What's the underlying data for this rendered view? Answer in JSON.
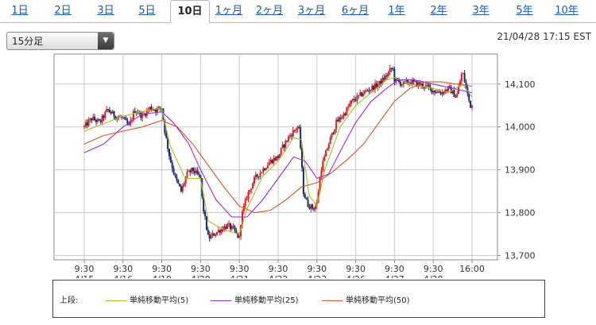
{
  "tabs": [
    {
      "label": "1日",
      "active": false
    },
    {
      "label": "2日",
      "active": false
    },
    {
      "label": "3日",
      "active": false
    },
    {
      "label": "5日",
      "active": false
    },
    {
      "label": "10日",
      "active": true
    },
    {
      "label": "1ヶ月",
      "active": false
    },
    {
      "label": "2ヶ月",
      "active": false
    },
    {
      "label": "3ヶ月",
      "active": false
    },
    {
      "label": "6ヶ月",
      "active": false
    },
    {
      "label": "1年",
      "active": false
    },
    {
      "label": "2年",
      "active": false
    },
    {
      "label": "3年",
      "active": false
    },
    {
      "label": "5年",
      "active": false
    },
    {
      "label": "10年",
      "active": false
    }
  ],
  "interval_select": {
    "value": "15分足"
  },
  "timestamp": "21/04/28 17:15 EST",
  "legend": {
    "prefix": "上段:",
    "items": [
      {
        "label": "単純移動平均(5)",
        "color": "#a8c020"
      },
      {
        "label": "単純移動平均(25)",
        "color": "#9a2fd0"
      },
      {
        "label": "単純移動平均(50)",
        "color": "#d8532a"
      }
    ]
  },
  "colors": {
    "up": "#d81e1e",
    "down": "#1a2a6b",
    "grid": "#c8c8c8",
    "axis": "#888888"
  },
  "chart_data": {
    "type": "candlestick",
    "y_ticks": [
      13700,
      13800,
      13900,
      14000,
      14100
    ],
    "ylim": [
      13690,
      14170
    ],
    "x_ticks": [
      {
        "time": "9:30",
        "date": "4/15"
      },
      {
        "time": "9:30",
        "date": "4/16"
      },
      {
        "time": "9:30",
        "date": "4/19"
      },
      {
        "time": "9:30",
        "date": "4/20"
      },
      {
        "time": "9:30",
        "date": "4/21"
      },
      {
        "time": "9:30",
        "date": "4/22"
      },
      {
        "time": "9:30",
        "date": "4/23"
      },
      {
        "time": "9:30",
        "date": "4/26"
      },
      {
        "time": "9:30",
        "date": "4/27"
      },
      {
        "time": "9:30",
        "date": "4/28"
      },
      {
        "time": "16:00",
        "date": ""
      }
    ],
    "close_path": [
      [
        0,
        14000
      ],
      [
        0.2,
        14020
      ],
      [
        0.4,
        14010
      ],
      [
        0.6,
        14040
      ],
      [
        0.8,
        14025
      ],
      [
        1.0,
        14020
      ],
      [
        1.15,
        14000
      ],
      [
        1.3,
        14040
      ],
      [
        1.5,
        14025
      ],
      [
        1.7,
        14045
      ],
      [
        1.85,
        14040
      ],
      [
        2.0,
        14045
      ],
      [
        2.08,
        13990
      ],
      [
        2.2,
        13930
      ],
      [
        2.35,
        13880
      ],
      [
        2.5,
        13850
      ],
      [
        2.65,
        13890
      ],
      [
        2.8,
        13900
      ],
      [
        3.0,
        13880
      ],
      [
        3.05,
        13820
      ],
      [
        3.2,
        13740
      ],
      [
        3.35,
        13750
      ],
      [
        3.5,
        13760
      ],
      [
        3.7,
        13770
      ],
      [
        3.85,
        13760
      ],
      [
        4.0,
        13740
      ],
      [
        4.05,
        13790
      ],
      [
        4.2,
        13840
      ],
      [
        4.4,
        13880
      ],
      [
        4.6,
        13900
      ],
      [
        4.8,
        13920
      ],
      [
        5.0,
        13930
      ],
      [
        5.1,
        13950
      ],
      [
        5.3,
        13980
      ],
      [
        5.5,
        14000
      ],
      [
        5.55,
        13990
      ],
      [
        5.65,
        13850
      ],
      [
        5.75,
        13820
      ],
      [
        5.9,
        13810
      ],
      [
        6.0,
        13820
      ],
      [
        6.1,
        13900
      ],
      [
        6.3,
        13960
      ],
      [
        6.5,
        14010
      ],
      [
        6.7,
        14030
      ],
      [
        6.9,
        14060
      ],
      [
        7.0,
        14065
      ],
      [
        7.2,
        14080
      ],
      [
        7.4,
        14090
      ],
      [
        7.6,
        14100
      ],
      [
        7.8,
        14120
      ],
      [
        7.95,
        14140
      ],
      [
        8.0,
        14110
      ],
      [
        8.2,
        14100
      ],
      [
        8.4,
        14105
      ],
      [
        8.6,
        14100
      ],
      [
        8.8,
        14095
      ],
      [
        9.0,
        14085
      ],
      [
        9.2,
        14080
      ],
      [
        9.4,
        14090
      ],
      [
        9.6,
        14070
      ],
      [
        9.75,
        14130
      ],
      [
        9.85,
        14090
      ],
      [
        9.95,
        14050
      ],
      [
        10.0,
        14050
      ]
    ],
    "sma": [
      {
        "name": "単純移動平均(5)",
        "points": [
          [
            0,
            13990
          ],
          [
            1.0,
            14025
          ],
          [
            2.0,
            14045
          ],
          [
            2.2,
            13960
          ],
          [
            2.6,
            13880
          ],
          [
            3.0,
            13880
          ],
          [
            3.2,
            13780
          ],
          [
            3.6,
            13760
          ],
          [
            4.0,
            13750
          ],
          [
            4.2,
            13810
          ],
          [
            4.6,
            13885
          ],
          [
            5.0,
            13920
          ],
          [
            5.4,
            13975
          ],
          [
            5.6,
            13970
          ],
          [
            5.8,
            13840
          ],
          [
            6.0,
            13815
          ],
          [
            6.2,
            13900
          ],
          [
            6.6,
            14000
          ],
          [
            7.0,
            14050
          ],
          [
            7.4,
            14080
          ],
          [
            7.8,
            14110
          ],
          [
            8.0,
            14115
          ],
          [
            8.4,
            14100
          ],
          [
            9.0,
            14090
          ],
          [
            9.4,
            14080
          ],
          [
            9.75,
            14100
          ],
          [
            10.0,
            14070
          ]
        ]
      },
      {
        "name": "単純移動平均(25)",
        "points": [
          [
            0,
            13940
          ],
          [
            0.5,
            13960
          ],
          [
            1.0,
            14000
          ],
          [
            1.5,
            14030
          ],
          [
            2.0,
            14035
          ],
          [
            2.3,
            14010
          ],
          [
            2.7,
            13960
          ],
          [
            3.0,
            13900
          ],
          [
            3.4,
            13830
          ],
          [
            3.8,
            13790
          ],
          [
            4.2,
            13790
          ],
          [
            4.6,
            13830
          ],
          [
            5.0,
            13880
          ],
          [
            5.4,
            13930
          ],
          [
            5.7,
            13920
          ],
          [
            6.0,
            13880
          ],
          [
            6.3,
            13890
          ],
          [
            6.7,
            13960
          ],
          [
            7.0,
            14010
          ],
          [
            7.4,
            14060
          ],
          [
            7.8,
            14090
          ],
          [
            8.1,
            14110
          ],
          [
            8.5,
            14110
          ],
          [
            9.0,
            14100
          ],
          [
            9.5,
            14090
          ],
          [
            10.0,
            14080
          ]
        ]
      },
      {
        "name": "単純移動平均(50)",
        "points": [
          [
            0,
            13960
          ],
          [
            0.5,
            13980
          ],
          [
            1.0,
            13990
          ],
          [
            1.5,
            14000
          ],
          [
            2.0,
            14015
          ],
          [
            2.4,
            14000
          ],
          [
            2.8,
            13960
          ],
          [
            3.2,
            13910
          ],
          [
            3.6,
            13860
          ],
          [
            4.0,
            13815
          ],
          [
            4.4,
            13800
          ],
          [
            4.8,
            13805
          ],
          [
            5.2,
            13830
          ],
          [
            5.6,
            13860
          ],
          [
            6.0,
            13870
          ],
          [
            6.4,
            13895
          ],
          [
            6.8,
            13925
          ],
          [
            7.2,
            13960
          ],
          [
            7.6,
            14010
          ],
          [
            8.0,
            14060
          ],
          [
            8.4,
            14090
          ],
          [
            8.8,
            14105
          ],
          [
            9.2,
            14105
          ],
          [
            9.6,
            14100
          ],
          [
            10.0,
            14095
          ]
        ]
      }
    ]
  }
}
